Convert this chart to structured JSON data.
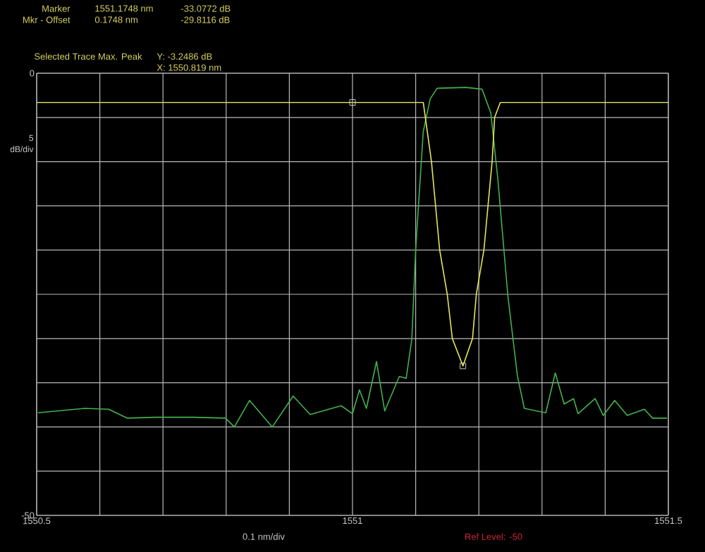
{
  "chart_data": {
    "type": "line",
    "ylabel": "5 dB/div",
    "xlim": [
      1550.5,
      1551.5
    ],
    "ylim": [
      -50,
      0
    ],
    "xticks": [
      1550.5,
      {
        "value": 1550.6,
        "label": null
      },
      {
        "value": 1550.7,
        "label": null
      },
      {
        "value": 1550.8,
        "label": null
      },
      {
        "value": 1550.9,
        "label": null
      },
      1551,
      {
        "value": 1551.1,
        "label": null
      },
      {
        "value": 1551.2,
        "label": null
      },
      {
        "value": 1551.3,
        "label": null
      },
      {
        "value": 1551.4,
        "label": null
      },
      1551.5
    ],
    "yticks": [
      {
        "value": -50,
        "label": "-50"
      },
      {
        "value": -45,
        "label": null
      },
      {
        "value": -40,
        "label": null
      },
      {
        "value": -35,
        "label": null
      },
      {
        "value": -30,
        "label": null
      },
      {
        "value": -25,
        "label": null
      },
      {
        "value": -20,
        "label": null
      },
      {
        "value": -15,
        "label": null
      },
      {
        "value": -10,
        "label": null
      },
      {
        "value": -5,
        "label": null
      },
      0
    ],
    "grid": true,
    "series": [
      {
        "color": "#44b04c",
        "x": [
          1550.502,
          1550.576,
          1550.614,
          1550.643,
          1550.688,
          1550.748,
          1550.799,
          1550.813,
          1550.837,
          1550.873,
          1550.906,
          1550.933,
          1550.982,
          1551.0,
          1551.011,
          1551.022,
          1551.038,
          1551.051,
          1551.074,
          1551.085,
          1551.094,
          1551.1,
          1551.112,
          1551.123,
          1551.134,
          1551.179,
          1551.205,
          1551.219,
          1551.23,
          1551.246,
          1551.261,
          1551.272,
          1551.306,
          1551.321,
          1551.335,
          1551.35,
          1551.357,
          1551.384,
          1551.397,
          1551.415,
          1551.435,
          1551.462,
          1551.475,
          1551.498
        ],
        "values": [
          -38.4,
          -37.9,
          -38.0,
          -39.0,
          -38.9,
          -38.9,
          -39.0,
          -40.0,
          -37.0,
          -40.0,
          -36.5,
          -38.6,
          -37.6,
          -38.5,
          -35.8,
          -37.9,
          -32.6,
          -38.2,
          -34.3,
          -34.5,
          -30.0,
          -19.9,
          -6.6,
          -2.9,
          -1.7,
          -1.6,
          -1.8,
          -4.5,
          -11.9,
          -25.2,
          -34.2,
          -37.9,
          -38.4,
          -33.9,
          -37.4,
          -36.8,
          -38.5,
          -36.8,
          -38.7,
          -37.0,
          -38.7,
          -38.0,
          -39.0,
          -39.0
        ]
      },
      {
        "color": "#e6e65a",
        "x": [
          1550.5,
          1551.0,
          1551.112,
          1551.125,
          1551.138,
          1551.15,
          1551.158,
          1551.1748,
          1551.19,
          1551.196,
          1551.208,
          1551.221,
          1551.225,
          1551.234,
          1551.5
        ],
        "values": [
          -3.3,
          -3.3,
          -3.3,
          -10,
          -20,
          -25,
          -30,
          -33.1,
          -30,
          -25,
          -20,
          -10,
          -5,
          -3.3,
          -3.3
        ]
      },
      {
        "type": "scatter",
        "marker": "square",
        "color": "#f0f0f0",
        "x": [
          1551.0,
          1551.1748
        ],
        "values": [
          -3.3,
          -33.1
        ]
      }
    ],
    "annotations": [
      "Marker",
      "1551.1748 nm",
      "-33.0772 dB",
      "Mkr - Offset",
      "0.1748 nm",
      "-29.8116 dB",
      "Selected Trace Max. Peak",
      "Y: -3.2486 dB",
      "X: 1550.819 nm",
      "0.1 nm/div",
      "Ref Level: -50"
    ]
  }
}
